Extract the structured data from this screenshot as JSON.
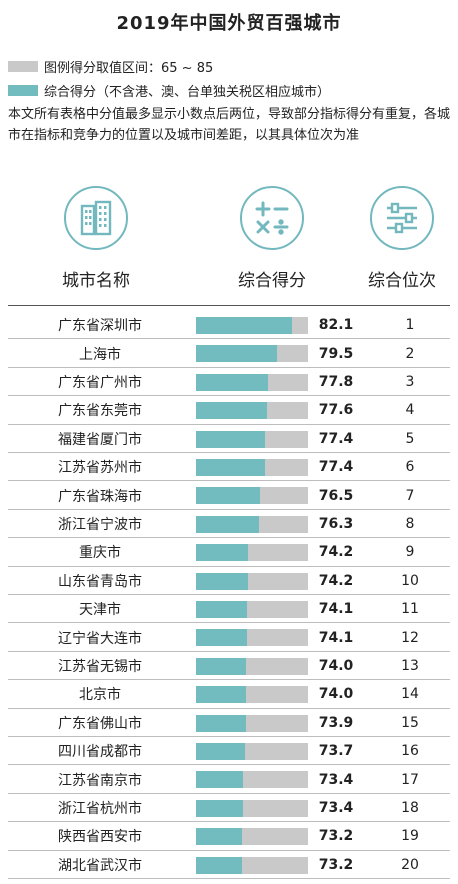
{
  "title": "2019年中国外贸百强城市",
  "legend": {
    "range_label": "图例得分取值区间：65 ~ 85",
    "score_label": "综合得分（不含港、澳、台单独关税区相应城市）",
    "range_color": "#c9c9c9",
    "score_color": "#72bcc0"
  },
  "note": "本文所有表格中分值最多显示小数点后两位，导致部分指标得分有重复，各城市在指标和竞争力的位置以及城市间差距，以其具体位次为准",
  "columns": {
    "city": "城市名称",
    "score": "综合得分",
    "rank": "综合位次"
  },
  "icons": {
    "city": "building-icon",
    "score": "math-operators-icon",
    "rank": "sliders-icon"
  },
  "chart_data": {
    "type": "bar",
    "title": "2019年中国外贸百强城市",
    "xlim": [
      65,
      85
    ],
    "categories": [
      "广东省深圳市",
      "上海市",
      "广东省广州市",
      "广东省东莞市",
      "福建省厦门市",
      "江苏省苏州市",
      "广东省珠海市",
      "浙江省宁波市",
      "重庆市",
      "山东省青岛市",
      "天津市",
      "辽宁省大连市",
      "江苏省无锡市",
      "北京市",
      "广东省佛山市",
      "四川省成都市",
      "江苏省南京市",
      "浙江省杭州市",
      "陕西省西安市",
      "湖北省武汉市"
    ],
    "values": [
      82.1,
      79.5,
      77.8,
      77.6,
      77.4,
      77.4,
      76.5,
      76.3,
      74.2,
      74.2,
      74.1,
      74.1,
      74.0,
      74.0,
      73.9,
      73.7,
      73.4,
      73.4,
      73.2,
      73.2
    ],
    "value_labels": [
      "82.1",
      "79.5",
      "77.8",
      "77.6",
      "77.4",
      "77.4",
      "76.5",
      "76.3",
      "74.2",
      "74.2",
      "74.1",
      "74.1",
      "74.0",
      "74.0",
      "73.9",
      "73.7",
      "73.4",
      "73.4",
      "73.2",
      "73.2"
    ],
    "ranks": [
      "1",
      "2",
      "3",
      "4",
      "5",
      "6",
      "7",
      "8",
      "9",
      "10",
      "11",
      "12",
      "13",
      "14",
      "15",
      "16",
      "17",
      "18",
      "19",
      "20"
    ]
  }
}
